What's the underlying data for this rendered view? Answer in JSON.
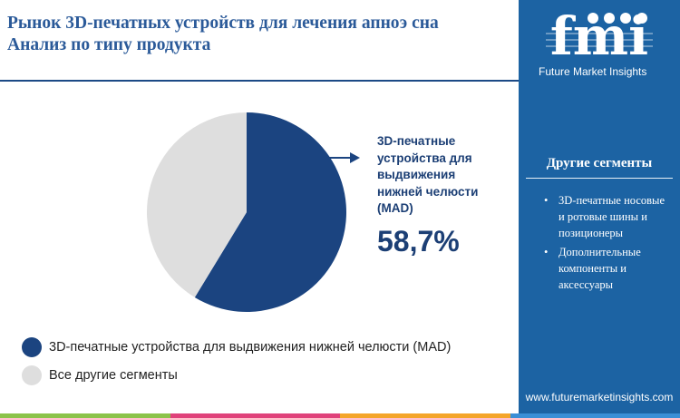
{
  "title": {
    "line1": "Рынок 3D-печатных устройств для лечения апноэ сна",
    "line2": "Анализ по типу продукта"
  },
  "brand": {
    "logo_letters": "fmi",
    "name": "Future Market Insights",
    "website": "www.futuremarketinsights.com"
  },
  "callout": {
    "label": "3D-печатные устройства для выдвижения нижней челюсти (MAD)",
    "value": "58,7%"
  },
  "sidebar": {
    "title": "Другие сегменты",
    "items": [
      "3D-печатные носовые и ротовые шины и позиционеры",
      "Дополнительные компоненты и аксессуары"
    ]
  },
  "legend": {
    "items": [
      "3D-печатные устройства для выдвижения нижней челюсти (MAD)",
      "Все другие сегменты"
    ]
  },
  "colors": {
    "primary": "#1b4480",
    "secondary": "#dedede",
    "sidebar": "#1c63a3",
    "title": "#2b5a99"
  },
  "chart_data": {
    "type": "pie",
    "title": "Рынок 3D-печатных устройств для лечения апноэ сна — Анализ по типу продукта",
    "slices": [
      {
        "label": "3D-печатные устройства для выдвижения нижней челюсти (MAD)",
        "value": 58.7,
        "color": "#1b4480"
      },
      {
        "label": "Все другие сегменты",
        "value": 41.3,
        "color": "#dedede"
      }
    ],
    "start": "top",
    "direction": "clockwise",
    "legend": "bottom-left"
  }
}
